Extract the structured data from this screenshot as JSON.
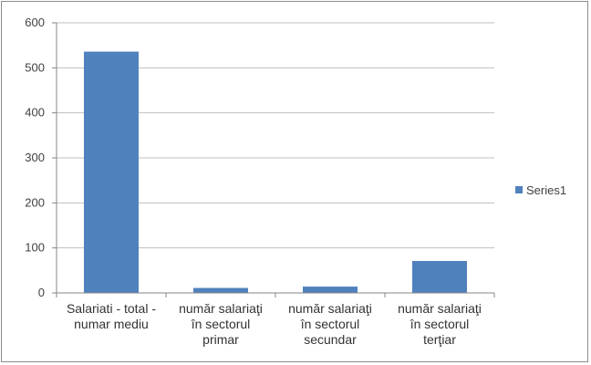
{
  "chart_data": {
    "type": "bar",
    "categories": [
      [
        "Salariati - total -",
        "numar mediu"
      ],
      [
        "număr  salariaţi",
        "în sectorul",
        "primar"
      ],
      [
        "număr  salariaţi",
        "în sectorul",
        "secundar"
      ],
      [
        "număr  salariaţi",
        "în sectorul",
        "terţiar"
      ]
    ],
    "series": [
      {
        "name": "Series1",
        "values": [
          536,
          11,
          14,
          71
        ]
      }
    ],
    "ylim": [
      0,
      600
    ],
    "yticks": [
      0,
      100,
      200,
      300,
      400,
      500,
      600
    ],
    "grid": true,
    "legend": "right",
    "colors": {
      "bar": "#4f81bd",
      "grid": "#bfbfbf",
      "axis": "#868686"
    }
  }
}
